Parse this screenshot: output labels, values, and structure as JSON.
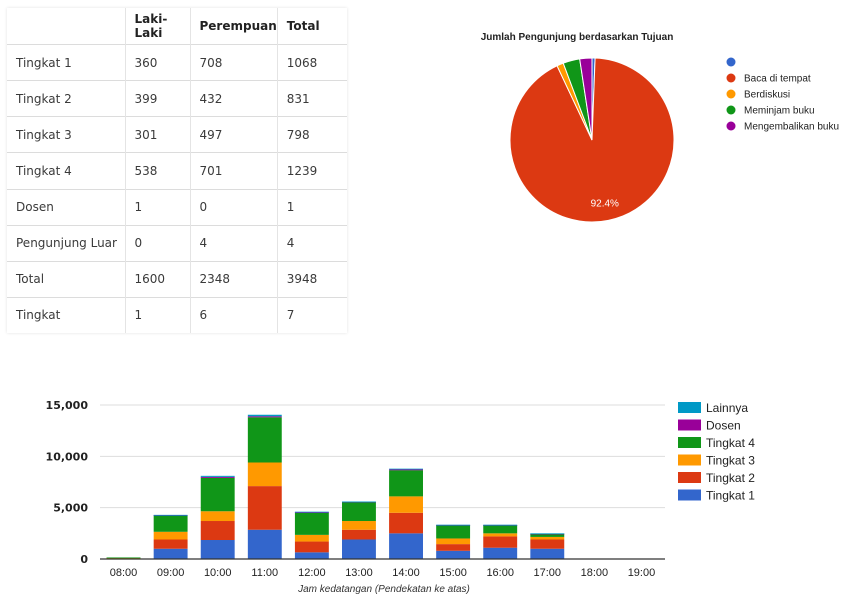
{
  "chart_data": [
    {
      "type": "table",
      "columns": [
        "",
        "Laki-Laki",
        "Perempuan",
        "Total"
      ],
      "rows": [
        {
          "label": "Tingkat 1",
          "laki": "360",
          "perempuan": "708",
          "total": "1068"
        },
        {
          "label": "Tingkat 2",
          "laki": "399",
          "perempuan": "432",
          "total": "831"
        },
        {
          "label": "Tingkat 3",
          "laki": "301",
          "perempuan": "497",
          "total": "798"
        },
        {
          "label": "Tingkat 4",
          "laki": "538",
          "perempuan": "701",
          "total": "1239"
        },
        {
          "label": "Dosen",
          "laki": "1",
          "perempuan": "0",
          "total": "1"
        },
        {
          "label": "Pengunjung Luar",
          "laki": "0",
          "perempuan": "4",
          "total": "4"
        },
        {
          "label": "Total",
          "laki": "1600",
          "perempuan": "2348",
          "total": "3948"
        },
        {
          "label": "Tingkat",
          "laki": "1",
          "perempuan": "6",
          "total": "7"
        }
      ]
    },
    {
      "type": "pie",
      "title": "Jumlah Pengunjung berdasarkan Tujuan",
      "legend_position": "right",
      "slices": [
        {
          "label": "",
          "value": 0.6,
          "color": "#3366cc"
        },
        {
          "label": "Baca di tempat",
          "value": 92.4,
          "color": "#dc3912"
        },
        {
          "label": "Berdiskusi",
          "value": 1.3,
          "color": "#ff9900"
        },
        {
          "label": "Meminjam buku",
          "value": 3.3,
          "color": "#109618"
        },
        {
          "label": "Mengembalikan buku",
          "value": 2.4,
          "color": "#990099"
        }
      ],
      "slice_labels": [
        {
          "slice": 1,
          "text": "92.4%"
        }
      ]
    },
    {
      "type": "bar",
      "stacked": true,
      "categories": [
        "08:00",
        "09:00",
        "10:00",
        "11:00",
        "12:00",
        "13:00",
        "14:00",
        "15:00",
        "16:00",
        "17:00",
        "18:00",
        "19:00"
      ],
      "xlabel": "Jam kedatangan (Pendekatan ke atas)",
      "ylim": [
        0,
        15000
      ],
      "yticks": [
        {
          "value": 0,
          "label": "0"
        },
        {
          "value": 5000,
          "label": "5,000"
        },
        {
          "value": 10000,
          "label": "10,000"
        },
        {
          "value": 15000,
          "label": "15,000"
        }
      ],
      "grid": true,
      "legend_position": "right",
      "series": [
        {
          "name": "Tingkat 1",
          "color": "#3366cc",
          "values": [
            60,
            1000,
            1850,
            2850,
            650,
            1900,
            2500,
            800,
            1100,
            1000,
            0,
            0
          ]
        },
        {
          "name": "Tingkat 2",
          "color": "#dc3912",
          "values": [
            50,
            900,
            1850,
            4250,
            1050,
            950,
            2000,
            650,
            1100,
            900,
            0,
            0
          ]
        },
        {
          "name": "Tingkat 3",
          "color": "#ff9900",
          "values": [
            20,
            750,
            950,
            2300,
            650,
            850,
            1600,
            550,
            300,
            250,
            0,
            0
          ]
        },
        {
          "name": "Tingkat 4",
          "color": "#109618",
          "values": [
            20,
            1600,
            3250,
            4400,
            2150,
            1850,
            2550,
            1300,
            800,
            300,
            0,
            0
          ]
        },
        {
          "name": "Dosen",
          "color": "#990099",
          "values": [
            0,
            30,
            100,
            100,
            60,
            30,
            70,
            20,
            20,
            20,
            0,
            0
          ]
        },
        {
          "name": "Lainnya",
          "color": "#0099c6",
          "values": [
            0,
            20,
            100,
            150,
            50,
            20,
            80,
            20,
            20,
            30,
            0,
            0
          ]
        }
      ],
      "legend_order": [
        "Lainnya",
        "Dosen",
        "Tingkat 4",
        "Tingkat 3",
        "Tingkat 2",
        "Tingkat 1"
      ]
    }
  ]
}
